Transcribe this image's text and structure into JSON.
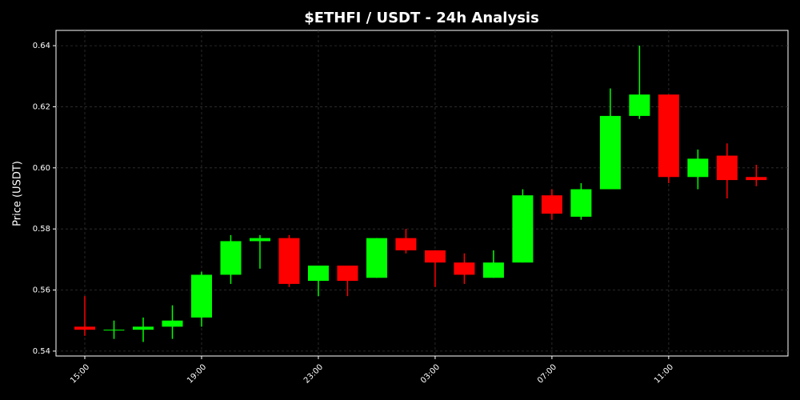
{
  "chart_data": {
    "type": "candlestick",
    "title": "$ETHFI / USDT - 24h Analysis",
    "y_label": "Price (USDT)",
    "categories": [
      "15:00",
      null,
      null,
      null,
      "19:00",
      null,
      null,
      null,
      "23:00",
      null,
      null,
      null,
      "03:00",
      null,
      null,
      null,
      "07:00",
      null,
      null,
      null,
      "11:00",
      null,
      null,
      null
    ],
    "open": [
      0.548,
      0.547,
      0.547,
      0.548,
      0.551,
      0.565,
      0.576,
      0.577,
      0.563,
      0.568,
      0.564,
      0.577,
      0.573,
      0.569,
      0.564,
      0.569,
      0.591,
      0.584,
      0.593,
      0.617,
      0.624,
      0.597,
      0.604,
      0.597
    ],
    "high": [
      0.558,
      0.55,
      0.551,
      0.555,
      0.566,
      0.578,
      0.578,
      0.578,
      0.568,
      0.568,
      0.577,
      0.58,
      0.573,
      0.572,
      0.573,
      0.593,
      0.593,
      0.595,
      0.626,
      0.64,
      0.624,
      0.606,
      0.608,
      0.601
    ],
    "low": [
      0.545,
      0.544,
      0.543,
      0.544,
      0.548,
      0.562,
      0.567,
      0.561,
      0.558,
      0.558,
      0.564,
      0.572,
      0.561,
      0.562,
      0.564,
      0.569,
      0.583,
      0.583,
      0.593,
      0.616,
      0.595,
      0.593,
      0.59,
      0.594
    ],
    "close": [
      0.547,
      0.547,
      0.548,
      0.55,
      0.565,
      0.576,
      0.577,
      0.562,
      0.568,
      0.563,
      0.577,
      0.573,
      0.569,
      0.565,
      0.569,
      0.591,
      0.585,
      0.593,
      0.617,
      0.624,
      0.597,
      0.603,
      0.596,
      0.596
    ],
    "up_color": "#00ff00",
    "down_color": "#ff0000",
    "ylim": [
      0.5384,
      0.645
    ],
    "yticks": [
      0.54,
      0.56,
      0.58,
      {
        "value": 0.6,
        "label": "0.60"
      },
      0.62,
      0.64
    ],
    "grid": true
  }
}
